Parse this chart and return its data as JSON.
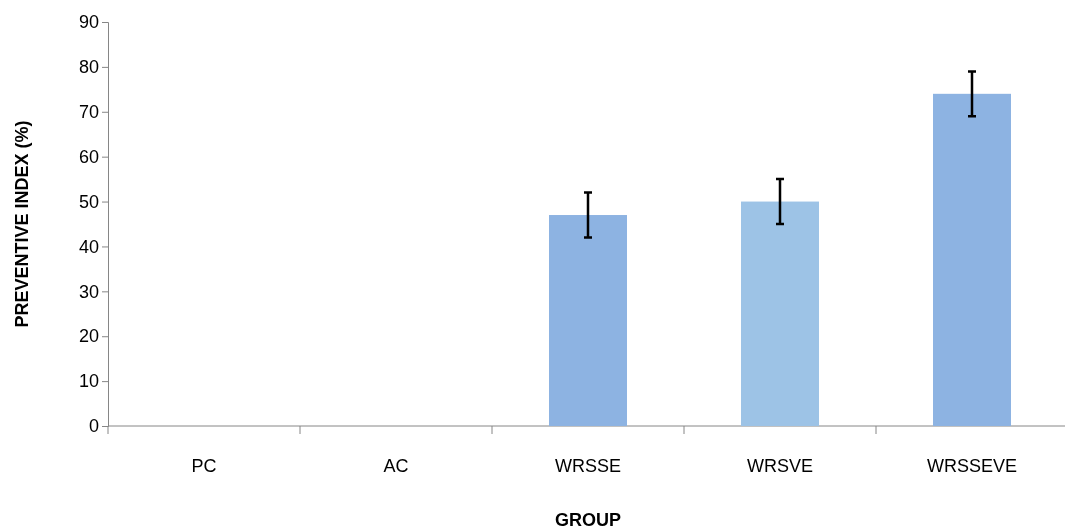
{
  "chart_data": {
    "type": "bar",
    "xlabel": "GROUP",
    "ylabel": "PREVENTIVE INDEX (%)",
    "categories": [
      "PC",
      "AC",
      "WRSSE",
      "WRSVE",
      "WRSSEVE"
    ],
    "values": [
      0,
      0,
      47,
      50,
      74
    ],
    "errors": [
      null,
      null,
      5,
      5,
      5
    ],
    "colors": [
      "#8db3e2",
      "#8db3e2",
      "#8db3e2",
      "#9dc3e6",
      "#8db3e2"
    ],
    "ylim": [
      0,
      90
    ],
    "yticks": [
      0,
      10,
      20,
      30,
      40,
      50,
      60,
      70,
      80,
      90
    ],
    "grid": false
  }
}
